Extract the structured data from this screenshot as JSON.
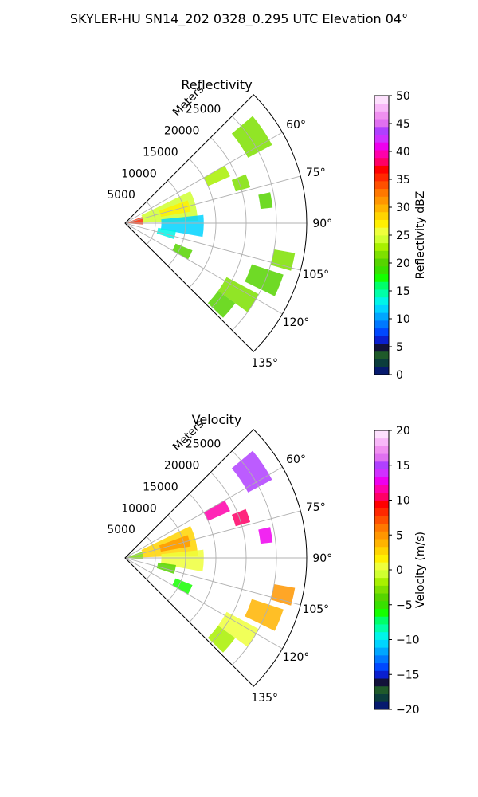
{
  "figure_title": "SKYLER-HU  SN14_202  0328_0.295 UTC Elevation 04°",
  "chart_data": [
    {
      "type": "polar-sector",
      "title": "Reflectivity",
      "radial_axis_label": "Meters",
      "radial_ticks": [
        "5000",
        "10000",
        "15000",
        "20000",
        "25000"
      ],
      "radial_tick_values": [
        5000,
        10000,
        15000,
        20000,
        25000
      ],
      "r_max": 30000,
      "theta_range_deg": [
        45,
        135
      ],
      "theta_ticks": [
        "60°",
        "75°",
        "90°",
        "105°",
        "120°",
        "135°"
      ],
      "theta_tick_values": [
        60,
        75,
        90,
        105,
        120,
        135
      ],
      "grid": true,
      "colorbar": {
        "label": "Reflectivity dBZ",
        "min": 0,
        "max": 50,
        "ticks": [
          "0",
          "5",
          "10",
          "15",
          "20",
          "25",
          "30",
          "35",
          "40",
          "45",
          "50"
        ],
        "colors": [
          "#061a6e",
          "#0b3d3c",
          "#1f5a2a",
          "#12123a",
          "#0a1fcf",
          "#0048ff",
          "#0078ff",
          "#00a6ff",
          "#00d4ff",
          "#00f5e8",
          "#00ffa8",
          "#00ff6a",
          "#15ff00",
          "#38e000",
          "#56d400",
          "#7ee000",
          "#a8f000",
          "#d0ff30",
          "#eeff3c",
          "#fff000",
          "#ffd400",
          "#ffb400",
          "#ff9600",
          "#ff7800",
          "#ff5000",
          "#ff2800",
          "#ff0000",
          "#ff0066",
          "#ff00aa",
          "#ee00ee",
          "#d030ff",
          "#b040ff",
          "#e070f0",
          "#f090f0",
          "#f8b8f8",
          "#fde0fd"
        ]
      },
      "echo_regions": [
        {
          "theta": [
            50,
            62
          ],
          "r": [
            23000,
            27500
          ],
          "value": 22
        },
        {
          "theta": [
            60,
            66
          ],
          "r": [
            15000,
            19000
          ],
          "value": 23
        },
        {
          "theta": [
            68,
            74
          ],
          "r": [
            19000,
            21500
          ],
          "value": 21
        },
        {
          "theta": [
            78,
            84
          ],
          "r": [
            22500,
            24500
          ],
          "value": 20
        },
        {
          "theta": [
            64,
            88
          ],
          "r": [
            3000,
            12000
          ],
          "value": 24
        },
        {
          "theta": [
            70,
            80
          ],
          "r": [
            6000,
            11000
          ],
          "value": 27
        },
        {
          "theta": [
            70,
            94
          ],
          "r": [
            400,
            3000
          ],
          "value": 36
        },
        {
          "theta": [
            84,
            100
          ],
          "r": [
            6000,
            13000
          ],
          "value": 12
        },
        {
          "theta": [
            98,
            108
          ],
          "r": [
            5500,
            8500
          ],
          "value": 13
        },
        {
          "theta": [
            112,
            120
          ],
          "r": [
            9000,
            12000
          ],
          "value": 20
        },
        {
          "theta": [
            100,
            106
          ],
          "r": [
            25000,
            28500
          ],
          "value": 21
        },
        {
          "theta": [
            108,
            116
          ],
          "r": [
            22000,
            27500
          ],
          "value": 20
        },
        {
          "theta": [
            118,
            126
          ],
          "r": [
            19000,
            25000
          ],
          "value": 21
        },
        {
          "theta": [
            126,
            134
          ],
          "r": [
            19000,
            22500
          ],
          "value": 20
        }
      ]
    },
    {
      "type": "polar-sector",
      "title": "Velocity",
      "radial_axis_label": "Meters",
      "radial_ticks": [
        "5000",
        "10000",
        "15000",
        "20000",
        "25000"
      ],
      "radial_tick_values": [
        5000,
        10000,
        15000,
        20000,
        25000
      ],
      "r_max": 30000,
      "theta_range_deg": [
        45,
        135
      ],
      "theta_ticks": [
        "60°",
        "75°",
        "90°",
        "105°",
        "120°",
        "135°"
      ],
      "theta_tick_values": [
        60,
        75,
        90,
        105,
        120,
        135
      ],
      "grid": true,
      "colorbar": {
        "label": "Velocity (m/s)",
        "min": -20,
        "max": 20,
        "ticks": [
          "−20",
          "−15",
          "−10",
          "−5",
          "0",
          "5",
          "10",
          "15",
          "20"
        ],
        "colors": [
          "#061a6e",
          "#0b3d3c",
          "#1f5a2a",
          "#12123a",
          "#0a1fcf",
          "#0048ff",
          "#0078ff",
          "#00a6ff",
          "#00d4ff",
          "#00f5e8",
          "#00ffa8",
          "#00ff6a",
          "#15ff00",
          "#38e000",
          "#56d400",
          "#7ee000",
          "#a8f000",
          "#d0ff30",
          "#eeff3c",
          "#fff000",
          "#ffd400",
          "#ffb400",
          "#ff9600",
          "#ff7800",
          "#ff5000",
          "#ff2800",
          "#ff0000",
          "#ff0066",
          "#ff00aa",
          "#ee00ee",
          "#d030ff",
          "#b040ff",
          "#e070f0",
          "#f090f0",
          "#f8b8f8",
          "#fde0fd"
        ]
      },
      "echo_regions": [
        {
          "theta": [
            50,
            62
          ],
          "r": [
            23000,
            27500
          ],
          "value": 15
        },
        {
          "theta": [
            60,
            66
          ],
          "r": [
            15000,
            19000
          ],
          "value": 12
        },
        {
          "theta": [
            68,
            74
          ],
          "r": [
            19000,
            21500
          ],
          "value": 11
        },
        {
          "theta": [
            78,
            84
          ],
          "r": [
            22500,
            24500
          ],
          "value": 13
        },
        {
          "theta": [
            64,
            88
          ],
          "r": [
            3000,
            12000
          ],
          "value": 3
        },
        {
          "theta": [
            70,
            80
          ],
          "r": [
            6000,
            11000
          ],
          "value": 5
        },
        {
          "theta": [
            70,
            94
          ],
          "r": [
            400,
            3000
          ],
          "value": -3
        },
        {
          "theta": [
            84,
            100
          ],
          "r": [
            6000,
            13000
          ],
          "value": 1
        },
        {
          "theta": [
            98,
            108
          ],
          "r": [
            5500,
            8500
          ],
          "value": -4
        },
        {
          "theta": [
            112,
            120
          ],
          "r": [
            9000,
            12000
          ],
          "value": -6
        },
        {
          "theta": [
            100,
            106
          ],
          "r": [
            25000,
            28500
          ],
          "value": 5
        },
        {
          "theta": [
            108,
            116
          ],
          "r": [
            22000,
            27500
          ],
          "value": 4
        },
        {
          "theta": [
            118,
            126
          ],
          "r": [
            19000,
            25000
          ],
          "value": 1
        },
        {
          "theta": [
            126,
            134
          ],
          "r": [
            19000,
            22500
          ],
          "value": -2
        }
      ]
    }
  ]
}
